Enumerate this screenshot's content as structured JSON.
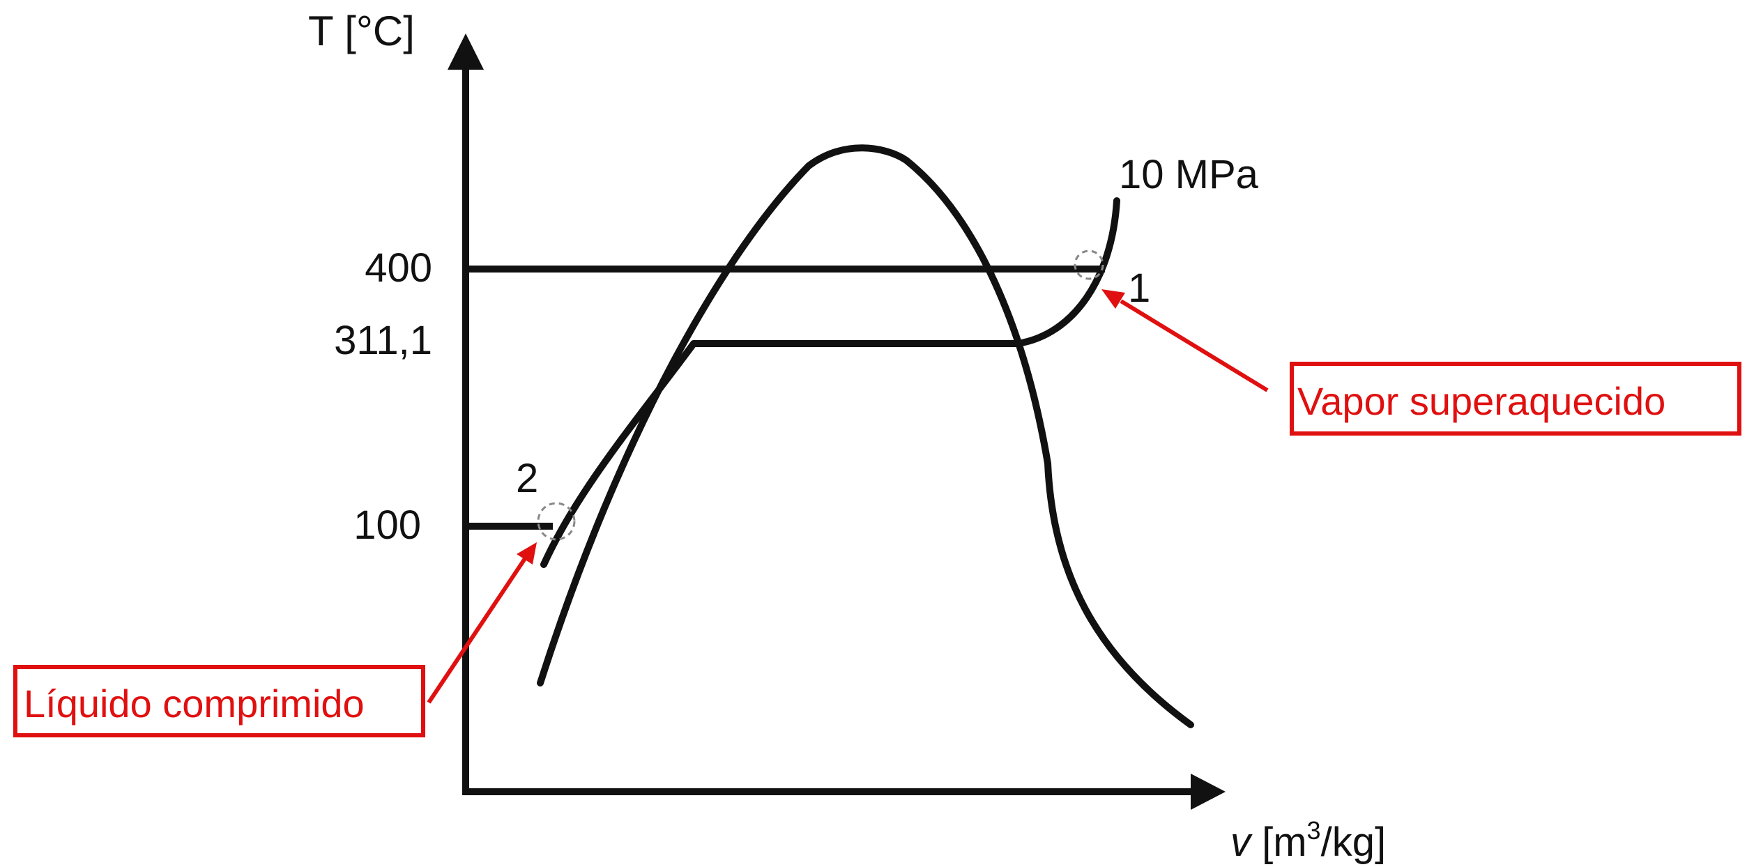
{
  "axes": {
    "y_label": "T [°C]",
    "x_label_var": "v",
    "x_label_pre": " [m",
    "x_label_sup": "3",
    "x_label_post": "/kg]"
  },
  "temperature_ticks": [
    "400",
    "311,1",
    "100"
  ],
  "isobar_label": "10 MPa",
  "points": {
    "state_1": "1",
    "state_2": "2"
  },
  "annotations": {
    "superheated": "Vapor superaquecido",
    "compressed": "Líquido comprimido"
  },
  "colors": {
    "curve": "#111111",
    "annotation": "#e01010",
    "marker": "#888888"
  }
}
